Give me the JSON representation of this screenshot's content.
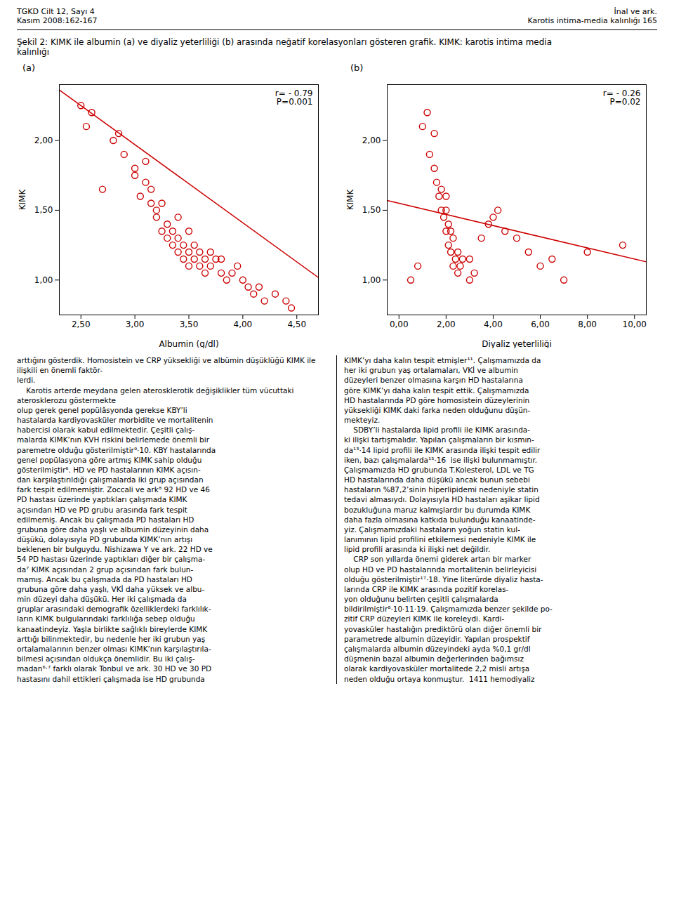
{
  "header_left": "TGKD Cilt 12, Sayı 4\nKasım 2008:162-167",
  "header_right": "İnal ve ark.\nKarotis intima-media kalınlığı  165",
  "caption": "Şekil 2: KIMK ile albumin (a) ve diyaliz yeterliliği (b) arasında neğatif korelasyonları gösteren grafik. KIMK: karotis intima media\nkalınlığı",
  "chart_data": [
    {
      "type": "scatter",
      "title": "(a)",
      "annotation": "r= - 0.79\nP=0.001",
      "xlabel": "Albumin (g/dl)",
      "ylabel": "KIMK",
      "xlim": [
        2.3,
        4.7
      ],
      "xticks": [
        {
          "value": 2.5,
          "label": "2,50"
        },
        {
          "value": 3.0,
          "label": "3,00"
        },
        {
          "value": 3.5,
          "label": "3,50"
        },
        {
          "value": 4.0,
          "label": "4,00"
        },
        {
          "value": 4.5,
          "label": "4,50"
        }
      ],
      "ylim": [
        0.75,
        2.4
      ],
      "yticks": [
        {
          "value": 1.0,
          "label": "1,00"
        },
        {
          "value": 1.5,
          "label": "1,50"
        },
        {
          "value": 2.0,
          "label": "2,00"
        }
      ],
      "grid": false,
      "series": [
        {
          "type": "scatter",
          "marker": "circle",
          "color": "#CC0000",
          "x": [
            2.5,
            2.55,
            2.6,
            2.7,
            2.8,
            2.85,
            2.9,
            3.0,
            3.0,
            3.05,
            3.1,
            3.1,
            3.15,
            3.15,
            3.2,
            3.2,
            3.25,
            3.25,
            3.3,
            3.3,
            3.35,
            3.35,
            3.4,
            3.4,
            3.4,
            3.45,
            3.45,
            3.5,
            3.5,
            3.5,
            3.55,
            3.55,
            3.6,
            3.6,
            3.65,
            3.65,
            3.7,
            3.7,
            3.75,
            3.8,
            3.8,
            3.85,
            3.9,
            3.95,
            4.0,
            4.05,
            4.1,
            4.15,
            4.2,
            4.3,
            4.4,
            4.45
          ],
          "values": [
            2.25,
            2.1,
            2.2,
            1.65,
            2.0,
            2.05,
            1.9,
            1.75,
            1.8,
            1.6,
            1.7,
            1.85,
            1.55,
            1.65,
            1.45,
            1.5,
            1.35,
            1.55,
            1.3,
            1.4,
            1.25,
            1.35,
            1.2,
            1.3,
            1.45,
            1.15,
            1.25,
            1.1,
            1.2,
            1.35,
            1.15,
            1.25,
            1.1,
            1.2,
            1.05,
            1.15,
            1.1,
            1.2,
            1.15,
            1.05,
            1.15,
            1.0,
            1.05,
            1.1,
            1.0,
            0.95,
            0.9,
            0.95,
            0.85,
            0.9,
            0.85,
            0.8
          ]
        },
        {
          "type": "line",
          "color": "#CC0000",
          "x": [
            2.3,
            4.7
          ],
          "values": [
            2.362,
            1.018
          ]
        }
      ]
    },
    {
      "type": "scatter",
      "title": "(b)",
      "annotation": "r= - 0.26\nP=0.02",
      "xlabel": "Diyaliz yeterliliği",
      "ylabel": "KIMK",
      "xlim": [
        -0.5,
        10.5
      ],
      "xticks": [
        {
          "value": 0.0,
          "label": "0,00"
        },
        {
          "value": 2.0,
          "label": "2,00"
        },
        {
          "value": 4.0,
          "label": "4,00"
        },
        {
          "value": 6.0,
          "label": "6,00"
        },
        {
          "value": 8.0,
          "label": "8,00"
        },
        {
          "value": 10.0,
          "label": "10,00"
        }
      ],
      "ylim": [
        0.75,
        2.4
      ],
      "yticks": [
        {
          "value": 1.0,
          "label": "1,00"
        },
        {
          "value": 1.5,
          "label": "1,50"
        },
        {
          "value": 2.0,
          "label": "2,00"
        }
      ],
      "grid": false,
      "series": [
        {
          "type": "scatter",
          "marker": "circle",
          "color": "#CC0000",
          "x": [
            0.5,
            0.8,
            1.0,
            1.2,
            1.3,
            1.5,
            1.5,
            1.6,
            1.7,
            1.8,
            1.8,
            1.9,
            2.0,
            2.0,
            2.0,
            2.1,
            2.1,
            2.2,
            2.2,
            2.3,
            2.3,
            2.4,
            2.5,
            2.5,
            2.6,
            2.7,
            3.0,
            3.0,
            3.2,
            3.5,
            3.8,
            4.0,
            4.2,
            4.5,
            5.0,
            5.5,
            6.0,
            6.5,
            7.0,
            8.0,
            9.5
          ],
          "values": [
            1.0,
            1.1,
            2.1,
            2.2,
            1.9,
            1.8,
            2.05,
            1.7,
            1.6,
            1.5,
            1.65,
            1.45,
            1.35,
            1.5,
            1.6,
            1.25,
            1.4,
            1.2,
            1.35,
            1.1,
            1.3,
            1.15,
            1.05,
            1.2,
            1.1,
            1.15,
            1.0,
            1.15,
            1.05,
            1.3,
            1.4,
            1.45,
            1.5,
            1.35,
            1.3,
            1.2,
            1.1,
            1.15,
            1.0,
            1.2,
            1.25
          ]
        },
        {
          "type": "line",
          "color": "#CC0000",
          "x": [
            -0.5,
            10.5
          ],
          "values": [
            1.57,
            1.13
          ]
        }
      ]
    }
  ],
  "body_text": [
    "arttığını gösterdik. Homosistein ve CRP yüksekliği ve albümin düşüklüğü KIMK ile ilişkili en önemli faktör-\nlerdi.\n    Karotis arterde meydana gelen aterosklerotik değişiklikler tüm vücuttaki aterosklerozu göstermekte\nolup gerek genel popülâsyonda gerekse KBY’li\nhastalarda kardiyovasküler morbidite ve mortalitenin\nhabercisi olarak kabul edilmektedir. Çeşitli çalış-\nmalarda KIMK’nın KVH riskini belirlemede önemli bir\nparemetre olduğu gösterilmiştir⁹·10. KBY hastalarında\ngenel popülasyona göre artmış KIMK sahip olduğu\ngösterilmiştir⁶. HD ve PD hastalarının KIMK açısın-\ndan karşılaştırıldığı çalışmalarda iki grup açısından\nfark tespit edilmemiştir. Zoccali ve ark⁸ 92 HD ve 46\nPD hastası üzerinde yaptıkları çalışmada KIMK\naçısından HD ve PD grubu arasında fark tespit\nedilmemiş. Ancak bu çalışmada PD hastaları HD\ngrubuna göre daha yaşlı ve albumin düzeyinin daha\ndüşükü, dolayısıyla PD grubunda KIMK’nın artışı\nbeklenen bir bulguydu. Nishizawa Y ve ark. 22 HD ve\n54 PD hastası üzerinde yaptıkları diğer bir çalışma-\nda⁷ KIMK açısından 2 grup açısından fark bulun-\nmamış. Ancak bu çalışmada da PD hastaları HD\ngrubuna göre daha yaşlı, VKİ daha yüksek ve albu-\nmin düzeyi daha düşükü. Her iki çalışmada da\ngruplar arasındaki demografik özelliklerdeki farklılık-\nların KIMK bulgularındaki farklılığa sebep olduğu\nkanaatindeyiz. Yaşla birlikte sağlıklı bireylerde KIMK\narttığı bilinmektedir, bu nedenle her iki grubun yaş\nortalamalarının benzer olması KIMK’nın karşılaştırıla-\nbilmesi açısından oldukça önemlidir. Bu iki çalış-\nmadan⁶‧⁷ farklı olarak Tonbul ve ark. 30 HD ve 30 PD\nhastasını dahil ettikleri çalışmada ise HD grubunda",
    "KIMK’yı daha kalın tespit etmişler¹¹. Çalışmamızda da\nher iki grubun yaş ortalamaları, VKİ ve albumin\ndüzeyleri benzer olmasına karşın HD hastalarına\ngöre KIMK’yı daha kalın tespit ettik. Çalışmamızda\nHD hastalarında PD göre homosistein düzeylerinin\nyüksekliği KIMK daki farka neden olduğunu düşün-\nmekteyiz.\n    SDBY’li hastalarda lipid profili ile KIMK arasında-\nki ilişki tartışmalıdır. Yapılan çalışmaların bir kısmın-\nda¹³·14 lipid profili ile KIMK arasında ilişki tespit edilir\niken, bazı çalışmalarda¹⁵·16  ise ilişki bulunmamıştır.\nÇalışmamızda HD grubunda T.Kolesterol, LDL ve TG\nHD hastalarında daha düşükü ancak bunun sebebi\nhastaların %87,2’sinin hiperlipidemi nedeniyle statin\ntedavi almasıydı. Dolayısıyla HD hastaları aşikar lipid\nbozukluğuna maruz kalmışlardır bu durumda KIMK\ndaha fazla olmasına katkıda bulunduğu kanaatinde-\nyiz. Çalışmamızdaki hastaların yoğun statin kul-\nlanımının lipid profilini etkilemesi nedeniyle KIMK ile\nlipid profili arasında ki ilişki net değildir.\n    CRP son yıllarda önemi giderek artan bir marker\nolup HD ve PD hastalarında mortalitenin belirleyicisi\nolduğu gösterilmiştir¹⁷·18. Yine literürde diyaliz hasta-\nlarında CRP ile KIMK arasında pozitif korelas-\nyon olduğunu belirten çeşitli çalışmalarda\nbildirilmiştir⁸·10·11·19. Çalışmamızda benzer şekilde po-\nzitif CRP düzeyleri KIMK ile koreleydi. Kardi-\nyovasküler hastalığın prediktörü olan diğer önemli bir\nparametrede albumin düzeyidir. Yapılan prospektif\nçalışmalarda albumin düzeyindeki ayda %0,1 gr/dl\ndüşmenin bazal albumin değerlerinden bağımsız\nolarak kardiyovasküler mortalitede 2,2 misli artışa\nneden olduğu ortaya konmuştur.  1411 hemodiyaliz"
  ]
}
